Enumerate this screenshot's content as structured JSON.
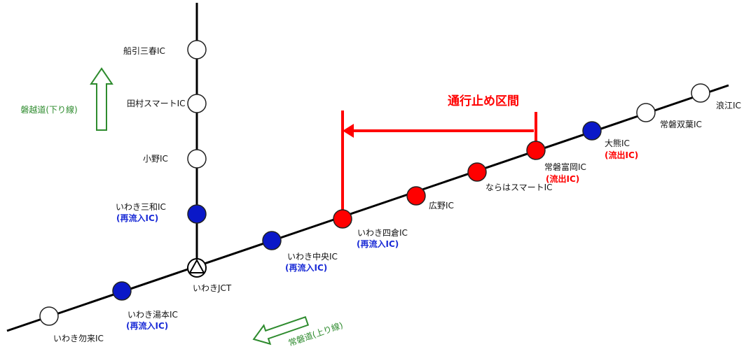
{
  "colors": {
    "closed": "#ff0000",
    "reentry": "#0a18c8",
    "open": "#ffffff",
    "road": "#000000",
    "direction": "#2e8b2e",
    "reentry_text": "#1a2bd6",
    "exit_text": "#ff0000"
  },
  "closure_title": "通行止め区間",
  "direction_labels": {
    "banetsu_down": "磐越道(下り線)",
    "joban_up": "常磐道(上り線)"
  },
  "icons": {
    "junction": "circle-with-triangle-icon",
    "arrow_up": "up-arrow-icon",
    "arrow_left": "left-arrow-icon"
  },
  "interchanges": [
    {
      "id": "funehiki-miharu",
      "name": "船引三春IC",
      "status": "open",
      "note": ""
    },
    {
      "id": "tamura-smart",
      "name": "田村スマートIC",
      "status": "open",
      "note": ""
    },
    {
      "id": "ono",
      "name": "小野IC",
      "status": "open",
      "note": ""
    },
    {
      "id": "iwaki-miwa",
      "name": "いわき三和IC",
      "status": "reentry",
      "note": "(再流入IC)"
    },
    {
      "id": "iwaki-jct",
      "name": "いわきJCT",
      "status": "junction",
      "note": ""
    },
    {
      "id": "iwaki-nakoso",
      "name": "いわき勿来IC",
      "status": "open",
      "note": ""
    },
    {
      "id": "iwaki-yumoto",
      "name": "いわき湯本IC",
      "status": "reentry",
      "note": "(再流入IC)"
    },
    {
      "id": "iwaki-chuo",
      "name": "いわき中央IC",
      "status": "reentry",
      "note": "(再流入IC)"
    },
    {
      "id": "iwaki-yotsukura",
      "name": "いわき四倉IC",
      "status": "closed",
      "note": "(再流入IC)"
    },
    {
      "id": "hirono",
      "name": "広野IC",
      "status": "closed",
      "note": ""
    },
    {
      "id": "naraha-smart",
      "name": "ならはスマートIC",
      "status": "closed",
      "note": ""
    },
    {
      "id": "joban-tomioka",
      "name": "常磐富岡IC",
      "status": "closed",
      "note": "(流出IC)"
    },
    {
      "id": "okuma",
      "name": "大熊IC",
      "status": "reentry",
      "note": "(流出IC)"
    },
    {
      "id": "joban-futaba",
      "name": "常磐双葉IC",
      "status": "open",
      "note": ""
    },
    {
      "id": "namie",
      "name": "浪江IC",
      "status": "open",
      "note": ""
    }
  ]
}
